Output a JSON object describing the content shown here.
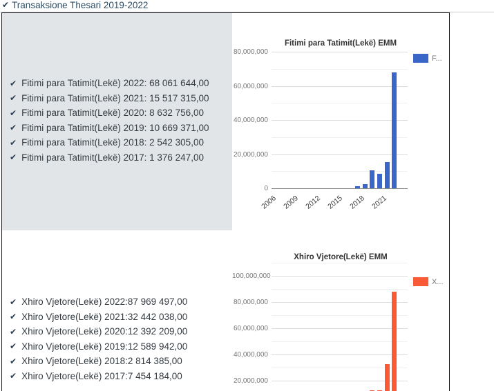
{
  "header": {
    "title": "Transaksione Thesari 2019-2022",
    "icon": "check-icon"
  },
  "colors": {
    "blue_bar": "#3a66c8",
    "orange_bar": "#f85b35",
    "panel_bg": "#e2e5e8",
    "check_icon": "#2c3e50",
    "header_text": "#2b4a62"
  },
  "fitimi_section": {
    "items": [
      "Fitimi para Tatimit(Lekë) 2022: 68 061 644,00",
      "Fitimi para Tatimit(Lekë) 2021: 15 517 315,00",
      "Fitimi para Tatimit(Lekë) 2020: 8 632 756,00",
      "Fitimi para Tatimit(Lekë) 2019: 10 669 371,00",
      "Fitimi para Tatimit(Lekë) 2018: 2 542 305,00",
      "Fitimi para Tatimit(Lekë) 2017: 1 376 247,00"
    ]
  },
  "xhiro_section": {
    "items": [
      "Xhiro Vjetore(Lekë) 2022:87 969 497,00",
      "Xhiro Vjetore(Lekë) 2021:32 442 038,00",
      "Xhiro Vjetore(Lekë) 2020:12 392 209,00",
      "Xhiro Vjetore(Lekë) 2019:12 589 942,00",
      "Xhiro Vjetore(Lekë) 2018:2 814 385,00",
      "Xhiro Vjetore(Lekë) 2017:7 454 184,00"
    ]
  },
  "chart_data": [
    {
      "type": "bar",
      "title": "Fitimi para Tatimit(Lekë) EMM",
      "legend": "F...",
      "legend_position": "right",
      "color": "#3a66c8",
      "x": [
        2017,
        2018,
        2019,
        2020,
        2021,
        2022
      ],
      "values": [
        1376247,
        2542305,
        10669371,
        8632756,
        15517315,
        68061644
      ],
      "x_tick_labels": [
        "2006",
        "2009",
        "2012",
        "2015",
        "2018",
        "2021"
      ],
      "x_tick_years": [
        2006,
        2009,
        2012,
        2015,
        2018,
        2021
      ],
      "y_tick_labels": [
        "0",
        "20,000,000",
        "40,000,000",
        "60,000,000",
        "80,000,000"
      ],
      "ylim": [
        0,
        80000000
      ],
      "grid": true
    },
    {
      "type": "bar",
      "title": "Xhiro Vjetore(Lekë) EMM",
      "legend": "X...",
      "legend_position": "right",
      "color": "#f85b35",
      "x": [
        2017,
        2018,
        2019,
        2020,
        2021,
        2022
      ],
      "values": [
        7454184,
        2814385,
        12589942,
        12392209,
        32442038,
        87969497
      ],
      "y_tick_labels": [
        "20,000,000",
        "40,000,000",
        "60,000,000",
        "80,000,000",
        "100,000,000"
      ],
      "ylim": [
        0,
        100000000
      ],
      "grid": true
    }
  ]
}
